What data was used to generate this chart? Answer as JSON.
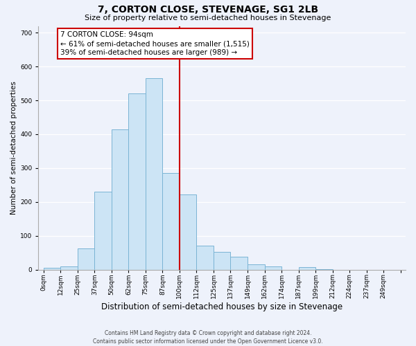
{
  "title": "7, CORTON CLOSE, STEVENAGE, SG1 2LB",
  "subtitle": "Size of property relative to semi-detached houses in Stevenage",
  "xlabel": "Distribution of semi-detached houses by size in Stevenage",
  "ylabel": "Number of semi-detached properties",
  "bar_labels": [
    "0sqm",
    "12sqm",
    "25sqm",
    "37sqm",
    "50sqm",
    "62sqm",
    "75sqm",
    "87sqm",
    "100sqm",
    "112sqm",
    "125sqm",
    "137sqm",
    "149sqm",
    "162sqm",
    "174sqm",
    "187sqm",
    "199sqm",
    "212sqm",
    "224sqm",
    "237sqm",
    "249sqm"
  ],
  "bar_heights": [
    5,
    10,
    62,
    230,
    415,
    520,
    565,
    285,
    222,
    70,
    52,
    37,
    15,
    10,
    0,
    8,
    2,
    0,
    0,
    0,
    0
  ],
  "bar_color": "#cce4f5",
  "bar_edge_color": "#7ab4d4",
  "vline_color": "#cc0000",
  "ylim": [
    0,
    720
  ],
  "yticks": [
    0,
    100,
    200,
    300,
    400,
    500,
    600,
    700
  ],
  "annotation_title": "7 CORTON CLOSE: 94sqm",
  "annotation_line1": "← 61% of semi-detached houses are smaller (1,515)",
  "annotation_line2": "39% of semi-detached houses are larger (989) →",
  "annotation_box_color": "#ffffff",
  "annotation_box_edge": "#cc0000",
  "footer_line1": "Contains HM Land Registry data © Crown copyright and database right 2024.",
  "footer_line2": "Contains public sector information licensed under the Open Government Licence v3.0.",
  "background_color": "#eef2fb",
  "grid_color": "#ffffff",
  "title_fontsize": 10,
  "subtitle_fontsize": 8,
  "ylabel_fontsize": 7.5,
  "xlabel_fontsize": 8.5,
  "tick_fontsize": 6.5,
  "annot_fontsize": 7.5,
  "footer_fontsize": 5.5
}
